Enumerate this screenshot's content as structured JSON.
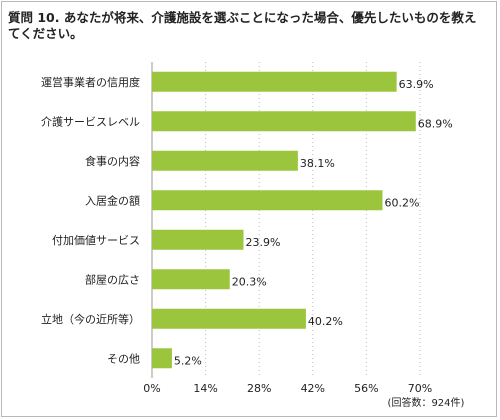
{
  "chart_data": {
    "type": "bar",
    "orientation": "horizontal",
    "title": "質問 10. あなたが将来、介護施設を選ぶことになった場合、優先したいものを教えてください。",
    "categories": [
      "運営事業者の信用度",
      "介護サービスレベル",
      "食事の内容",
      "入居金の額",
      "付加価値サービス",
      "部屋の広さ",
      "立地（今の近所等）",
      "その他"
    ],
    "values": [
      63.9,
      68.9,
      38.1,
      60.2,
      23.9,
      20.3,
      40.2,
      5.2
    ],
    "value_labels": [
      "63.9%",
      "68.9%",
      "38.1%",
      "60.2%",
      "23.9%",
      "20.3%",
      "40.2%",
      "5.2%"
    ],
    "x_ticks": [
      0,
      14,
      28,
      42,
      56,
      70
    ],
    "x_tick_labels": [
      "0%",
      "14%",
      "28%",
      "42%",
      "56%",
      "70%"
    ],
    "xlim": [
      0,
      70
    ],
    "grid": "vertical dotted",
    "note": "(回答数：924件)",
    "colors": {
      "bar": "#9bc53d",
      "axis": "#999999",
      "grid": "#bbbbbb"
    }
  }
}
